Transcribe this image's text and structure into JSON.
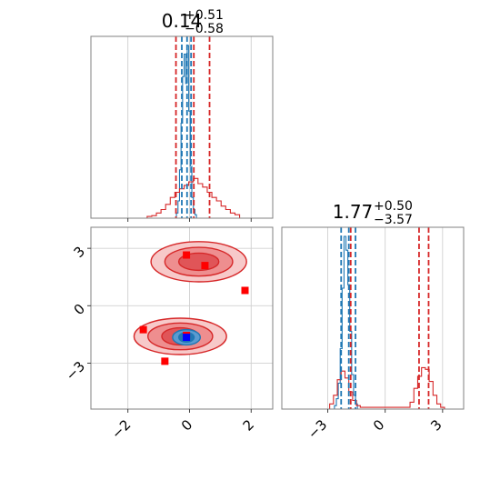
{
  "colors": {
    "blue": "#1f77b4",
    "red": "#d62728",
    "marker_red": "#ff0000",
    "marker_blue": "#0000ff",
    "frame": "#808080",
    "grid": "#d0d0d0"
  },
  "chart_data": [
    {
      "type": "line",
      "panel": "marginal-param-1",
      "title": {
        "median": "0.14",
        "plus": "+0.51",
        "minus": "−0.58"
      },
      "xlim": [
        -3.2,
        2.7
      ],
      "grid": true,
      "histograms": [
        {
          "color": "#1f77b4",
          "x": [
            -0.4,
            -0.35,
            -0.3,
            -0.25,
            -0.2,
            -0.15,
            -0.1,
            -0.05,
            0,
            0.05,
            0.1,
            0.15,
            0.2
          ],
          "y": [
            0.03,
            0.1,
            0.28,
            0.55,
            0.82,
            0.95,
            0.78,
            1.0,
            0.62,
            0.3,
            0.12,
            0.05,
            0.02
          ]
        },
        {
          "color": "#d62728",
          "x": [
            -1.3,
            -1.15,
            -1.0,
            -0.85,
            -0.7,
            -0.55,
            -0.4,
            -0.25,
            -0.1,
            0.05,
            0.2,
            0.35,
            0.5,
            0.65,
            0.8,
            0.95,
            1.1,
            1.25,
            1.4,
            1.55
          ],
          "y": [
            0.01,
            0.015,
            0.03,
            0.05,
            0.08,
            0.12,
            0.15,
            0.17,
            0.19,
            0.21,
            0.23,
            0.2,
            0.18,
            0.15,
            0.12,
            0.1,
            0.07,
            0.05,
            0.03,
            0.02
          ]
        }
      ],
      "quantiles": [
        {
          "color": "#1f77b4",
          "x": [
            -0.25,
            -0.08,
            0.05
          ]
        },
        {
          "color": "#d62728",
          "x": [
            -0.44,
            0.14,
            0.65
          ]
        }
      ]
    },
    {
      "type": "line",
      "panel": "marginal-param-2",
      "title": {
        "median": "1.77",
        "plus": "+0.50",
        "minus": "−3.57"
      },
      "xlim": [
        -5.4,
        4.1
      ],
      "grid": true,
      "histograms": [
        {
          "color": "#1f77b4",
          "x": [
            -2.6,
            -2.5,
            -2.4,
            -2.3,
            -2.2,
            -2.1,
            -2.0,
            -1.9,
            -1.8,
            -1.7,
            -1.6,
            -1.5
          ],
          "y": [
            0.02,
            0.06,
            0.15,
            0.35,
            0.7,
            1.0,
            0.92,
            0.72,
            0.45,
            0.2,
            0.08,
            0.03
          ]
        },
        {
          "color": "#d62728",
          "x": [
            -2.8,
            -2.6,
            -2.4,
            -2.2,
            -2.0,
            -1.8,
            -1.6,
            -1.4,
            -1.2,
            1.2,
            1.4,
            1.6,
            1.8,
            2.0,
            2.2,
            2.4,
            2.6,
            2.8,
            3.0
          ],
          "y": [
            0.03,
            0.08,
            0.17,
            0.22,
            0.18,
            0.1,
            0.05,
            0.02,
            0.01,
            0.01,
            0.04,
            0.12,
            0.19,
            0.24,
            0.23,
            0.16,
            0.08,
            0.03,
            0.01
          ]
        }
      ],
      "quantiles": [
        {
          "color": "#1f77b4",
          "x": [
            -2.3,
            -1.9,
            -1.55
          ]
        },
        {
          "color": "#d62728",
          "x": [
            -1.8,
            1.77,
            2.27
          ]
        }
      ]
    },
    {
      "type": "scatter",
      "panel": "joint-param-1-param-2",
      "xlim": [
        -3.2,
        2.7
      ],
      "ylim": [
        -5.4,
        4.1
      ],
      "grid": true,
      "x_ticks": [
        "−2",
        "0",
        "2"
      ],
      "x_tick_values": [
        -2,
        0,
        2
      ],
      "y_ticks": [
        "3",
        "0",
        "−3"
      ],
      "y_tick_values": [
        3,
        0,
        -3
      ],
      "contours": [
        {
          "name": "upper-mode",
          "cx": 0.3,
          "cy": 2.3,
          "rx": [
            1.55,
            1.1,
            0.65
          ],
          "ry": [
            1.05,
            0.75,
            0.45
          ],
          "color": "#d62728"
        },
        {
          "name": "lower-mode",
          "cx": -0.3,
          "cy": -1.6,
          "rx": [
            1.5,
            1.05,
            0.6
          ],
          "ry": [
            0.95,
            0.7,
            0.45
          ],
          "color": "#d62728"
        },
        {
          "name": "blue-core",
          "cx": -0.1,
          "cy": -1.65,
          "rx": [
            0.45,
            0.25
          ],
          "ry": [
            0.4,
            0.25
          ],
          "color": "#1f77b4"
        }
      ],
      "red_markers": [
        {
          "x": -0.1,
          "y": 2.65
        },
        {
          "x": 0.5,
          "y": 2.1
        },
        {
          "x": 1.8,
          "y": 0.8
        },
        {
          "x": -1.5,
          "y": -1.25
        },
        {
          "x": -0.8,
          "y": -2.9
        },
        {
          "x": -0.1,
          "y": -1.55
        }
      ],
      "blue_markers": [
        {
          "x": -0.1,
          "y": -1.65
        }
      ]
    }
  ]
}
